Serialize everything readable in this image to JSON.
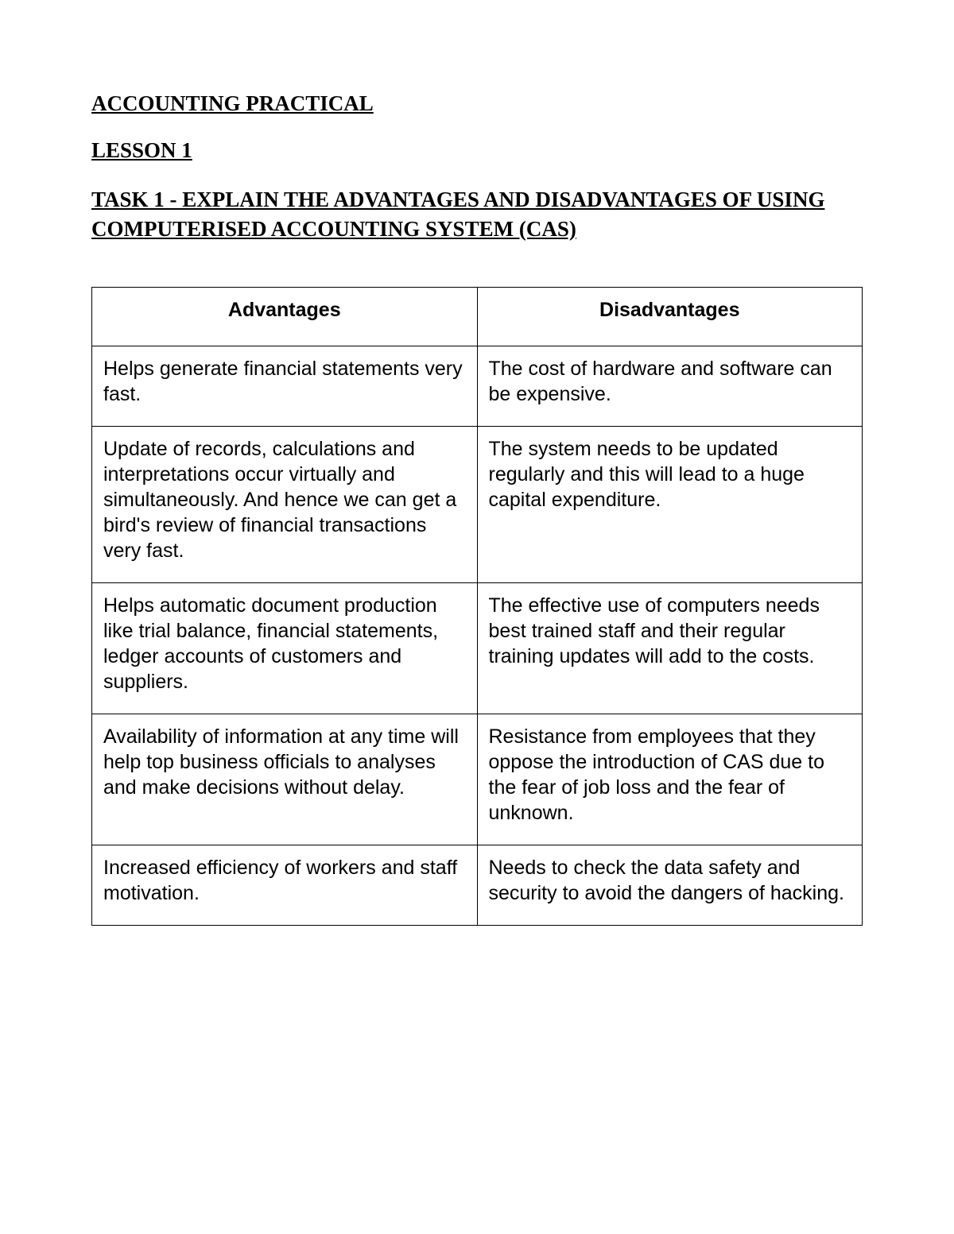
{
  "headings": {
    "title": "ACCOUNTING PRACTICAL",
    "lesson": "LESSON 1",
    "task": "TASK 1 - EXPLAIN THE ADVANTAGES AND DISADVANTAGES OF USING COMPUTERISED ACCOUNTING SYSTEM (CAS)"
  },
  "table": {
    "columns": [
      "Advantages",
      "Disadvantages"
    ],
    "column_widths": [
      "50%",
      "50%"
    ],
    "header_align": "center",
    "cell_align": "left",
    "header_font_family": "Arial",
    "cell_font_family": "Arial",
    "border_color": "#000000",
    "rows": [
      [
        "Helps generate financial statements very fast.",
        "The cost of hardware and software can be expensive."
      ],
      [
        "Update of records, calculations and interpretations occur virtually and simultaneously. And hence we can get a bird's review of financial transactions very fast.",
        "The system needs to be updated regularly and this will lead to a huge capital expenditure."
      ],
      [
        "Helps automatic document production like trial balance, financial statements, ledger accounts of customers and suppliers.",
        "The effective use of computers needs best trained staff and their regular training updates will add to the costs."
      ],
      [
        "Availability of information at any time will help top business officials to analyses and make decisions without delay.",
        "Resistance from employees that they oppose the introduction of CAS due to the fear of job loss and the fear of unknown."
      ],
      [
        "Increased efficiency of workers and staff motivation.",
        "Needs to check the data safety and security to avoid the dangers of hacking."
      ]
    ]
  },
  "style": {
    "page_background": "#ffffff",
    "text_color": "#000000",
    "heading_font_family": "Times New Roman",
    "heading_fontsize_pt": 20,
    "cell_fontsize_pt": 19
  }
}
